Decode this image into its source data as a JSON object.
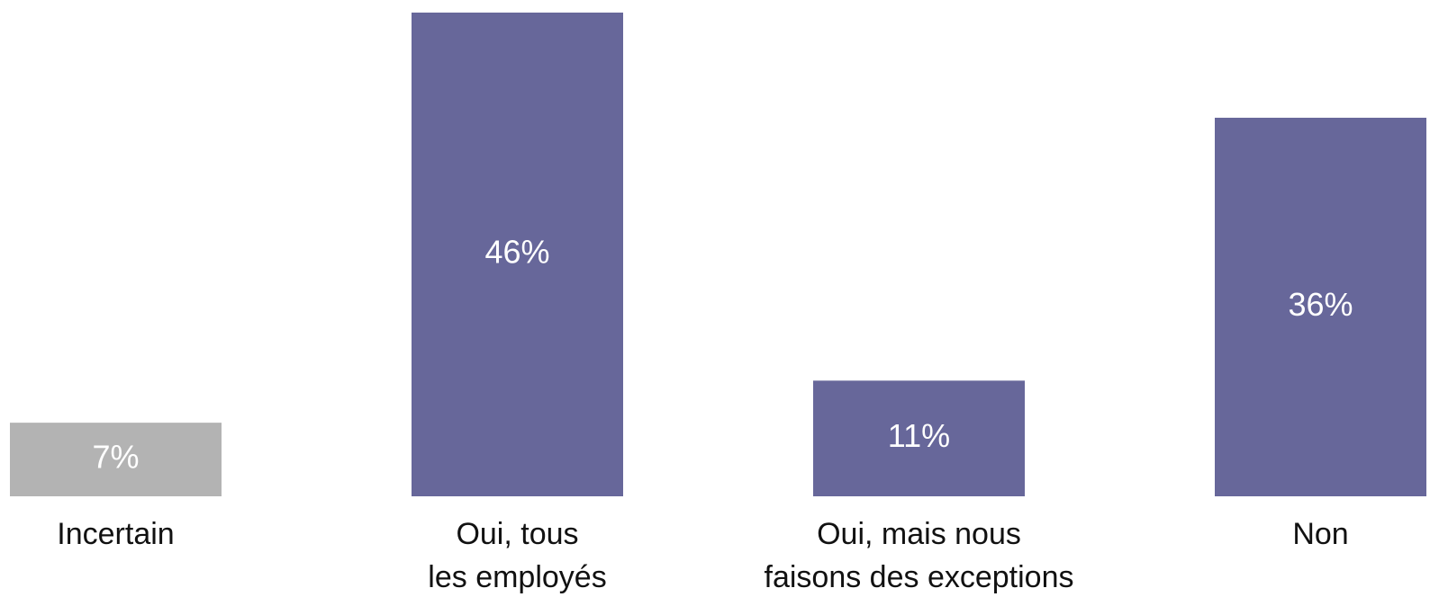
{
  "chart_data": {
    "type": "bar",
    "categories": [
      "Incertain",
      "Oui, tous\nles employés",
      "Oui, mais nous\nfaisons des exceptions",
      "Non"
    ],
    "values": [
      7,
      46,
      11,
      36
    ],
    "value_labels": [
      "7%",
      "46%",
      "11%",
      "36%"
    ],
    "colors": [
      "#b3b3b3",
      "#67679a",
      "#67679a",
      "#67679a"
    ]
  }
}
